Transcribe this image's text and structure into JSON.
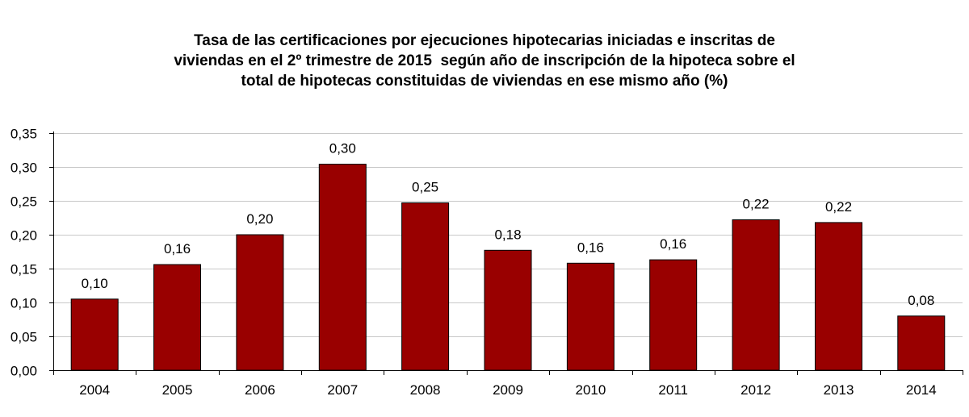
{
  "chart_data": {
    "type": "bar",
    "title_lines": [
      "Tasa de las certificaciones por ejecuciones hipotecarias iniciadas e inscritas de",
      "viviendas en el 2º trimestre de 2015  según año de inscripción de la hipoteca sobre el",
      "total de hipotecas constituidas de viviendas en ese mismo año (%)"
    ],
    "categories": [
      "2004",
      "2005",
      "2006",
      "2007",
      "2008",
      "2009",
      "2010",
      "2011",
      "2012",
      "2013",
      "2014"
    ],
    "values": [
      0.105,
      0.156,
      0.2,
      0.304,
      0.247,
      0.177,
      0.158,
      0.163,
      0.222,
      0.218,
      0.08
    ],
    "data_labels": [
      "0,10",
      "0,16",
      "0,20",
      "0,30",
      "0,25",
      "0,18",
      "0,16",
      "0,16",
      "0,22",
      "0,22",
      "0,08"
    ],
    "y_ticks": [
      "0,00",
      "0,05",
      "0,10",
      "0,15",
      "0,20",
      "0,25",
      "0,30",
      "0,35"
    ],
    "ylim": [
      0,
      0.35
    ],
    "ytick_step": 0.05,
    "grid": true,
    "xlabel": "",
    "ylabel": "",
    "bar_color": "#990000",
    "bar_edge_color": "#000000",
    "grid_color": "#c8c8c8"
  }
}
